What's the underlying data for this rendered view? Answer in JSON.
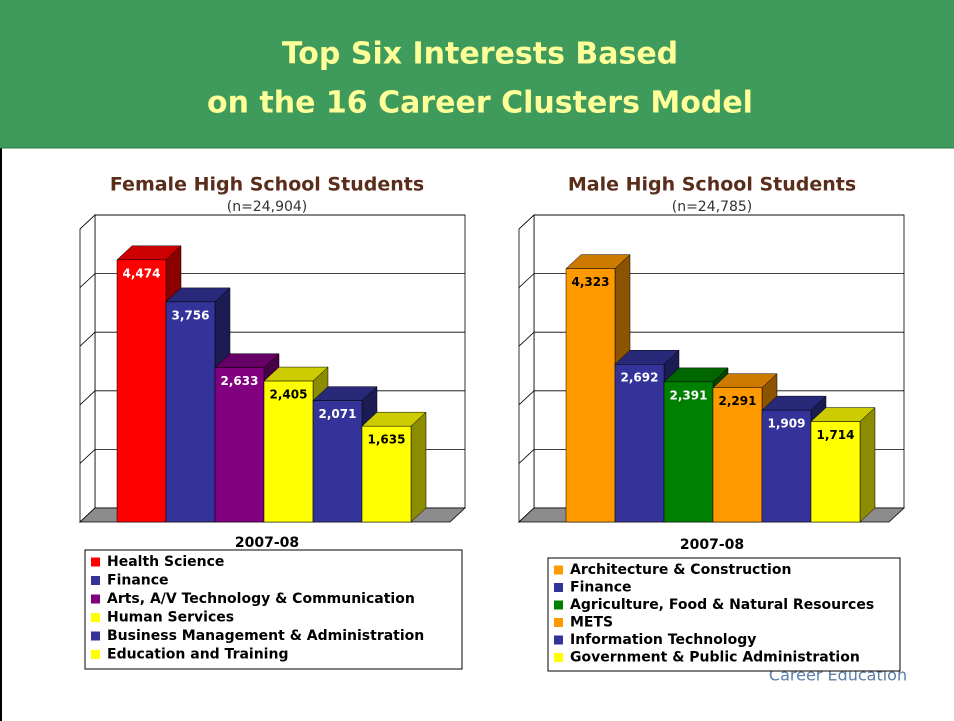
{
  "header": {
    "title_lines": [
      "Top Six Interests Based",
      "on the 16 Career Clusters Model"
    ]
  },
  "logo_text": "Career Education",
  "chart_data": [
    {
      "type": "bar",
      "title": "Female High School Students",
      "subtitle": "(n=24,904)",
      "x_label": "2007-08",
      "ylim": [
        0,
        5000
      ],
      "yticks": [
        0,
        1000,
        2000,
        3000,
        4000,
        5000
      ],
      "grid": true,
      "series": [
        {
          "name": "Health Science",
          "color": "#ff0000",
          "values": [
            4474
          ],
          "value_labels": [
            "4,474"
          ]
        },
        {
          "name": "Finance",
          "color": "#333399",
          "values": [
            3756
          ],
          "value_labels": [
            "3,756"
          ]
        },
        {
          "name": "Arts, A/V Technology & Communication",
          "color": "#800080",
          "values": [
            2633
          ],
          "value_labels": [
            "2,633"
          ]
        },
        {
          "name": "Human Services",
          "color": "#ffff00",
          "values": [
            2405
          ],
          "value_labels": [
            "2,405"
          ]
        },
        {
          "name": "Business Management & Administration",
          "color": "#333399",
          "values": [
            2071
          ],
          "value_labels": [
            "2,071"
          ]
        },
        {
          "name": "Education and Training",
          "color": "#ffff00",
          "values": [
            1635
          ],
          "value_labels": [
            "1,635"
          ]
        }
      ]
    },
    {
      "type": "bar",
      "title": "Male High School Students",
      "subtitle": "(n=24,785)",
      "x_label": "2007-08",
      "ylim": [
        0,
        5000
      ],
      "yticks": [
        0,
        1000,
        2000,
        3000,
        4000,
        5000
      ],
      "grid": true,
      "series": [
        {
          "name": "Architecture & Construction",
          "color": "#ff9900",
          "values": [
            4323
          ],
          "value_labels": [
            "4,323"
          ]
        },
        {
          "name": "Finance",
          "color": "#333399",
          "values": [
            2692
          ],
          "value_labels": [
            "2,692"
          ]
        },
        {
          "name": "Agriculture, Food & Natural Resources",
          "color": "#008000",
          "values": [
            2391
          ],
          "value_labels": [
            "2,391"
          ]
        },
        {
          "name": "METS",
          "color": "#ff9900",
          "values": [
            2291
          ],
          "value_labels": [
            "2,291"
          ]
        },
        {
          "name": "Information Technology",
          "color": "#333399",
          "values": [
            1909
          ],
          "value_labels": [
            "1,909"
          ]
        },
        {
          "name": "Government & Public Administration",
          "color": "#ffff00",
          "values": [
            1714
          ],
          "value_labels": [
            "1,714"
          ]
        }
      ]
    }
  ]
}
